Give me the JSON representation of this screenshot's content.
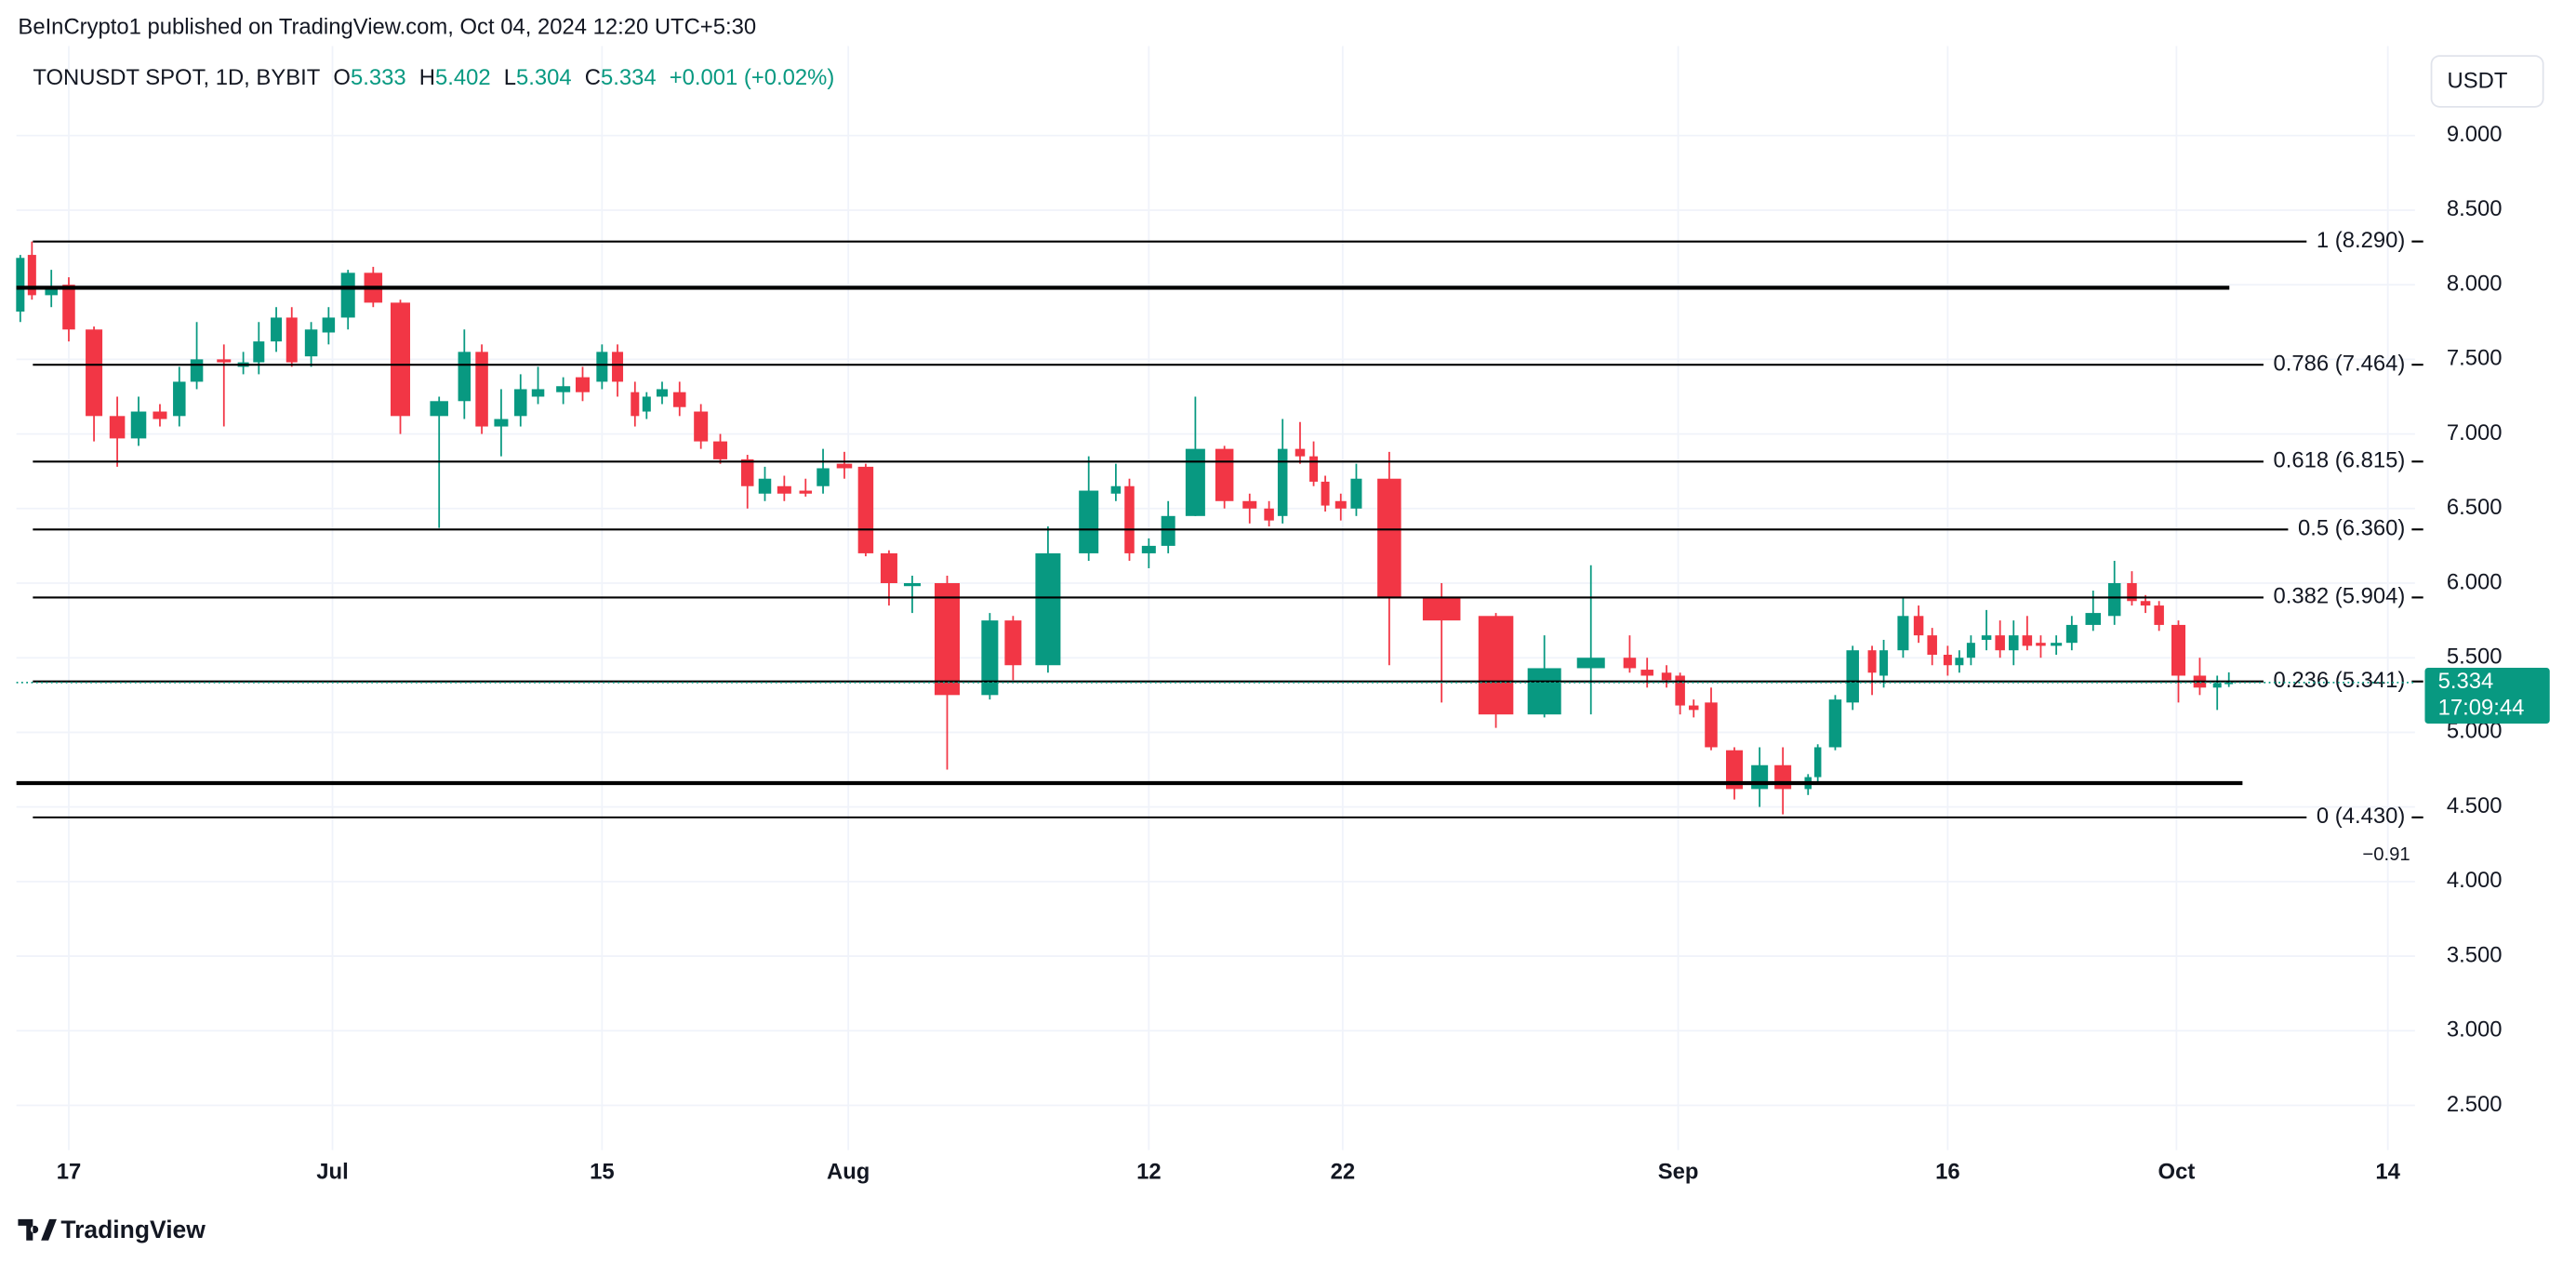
{
  "header": {
    "publisher": "BeInCrypto1 published on TradingView.com, Oct 04, 2024 12:20 UTC+5:30",
    "symbol": "TONUSDT SPOT, 1D, BYBIT",
    "ohlc": [
      {
        "label": "O",
        "value": "5.333"
      },
      {
        "label": "H",
        "value": "5.402"
      },
      {
        "label": "L",
        "value": "5.304"
      },
      {
        "label": "C",
        "value": "5.334"
      }
    ],
    "change": "+0.001 (+0.02%)",
    "currency_button": "USDT",
    "logo": "TradingView"
  },
  "chart_data": {
    "type": "candlestick",
    "up_color": "#089981",
    "down_color": "#f23645",
    "grid": true,
    "x": [
      -2.5,
      -1.9,
      -0.9,
      0,
      1.3,
      2.5,
      3.6,
      4.7,
      5.7,
      6.6,
      8.0,
      9.0,
      9.8,
      10.7,
      11.5,
      12.5,
      13.4,
      14.4,
      15.7,
      17.1,
      19.1,
      20.4,
      21.3,
      22.3,
      23.3,
      24.2,
      25.5,
      26.5,
      27.5,
      28.3,
      29.2,
      29.8,
      30.6,
      31.5,
      32.6,
      33.6,
      35.0,
      35.9,
      36.9,
      38.0,
      38.9,
      40.0,
      41.1,
      42.3,
      43.5,
      45.3,
      47.5,
      48.7,
      50.5,
      52.6,
      54.0,
      54.7,
      55.7,
      56.7,
      58.1,
      59.6,
      60.9,
      61.9,
      62.6,
      63.5,
      64.2,
      64.8,
      65.6,
      66.4,
      68.1,
      70.8,
      73.6,
      76.1,
      78.5,
      80.5,
      81.4,
      82.4,
      83.1,
      83.8,
      84.7,
      85.9,
      87.2,
      88.4,
      89.7,
      90.2,
      91.1,
      92.0,
      93.0,
      93.6,
      94.6,
      95.4,
      96.1,
      96.9,
      97.5,
      98.1,
      98.9,
      99.6,
      100.3,
      101.0,
      101.7,
      102.5,
      103.3,
      104.4,
      105.5,
      106.4,
      107.1,
      107.8,
      108.8,
      109.9,
      110.8,
      111.4
    ],
    "open": [
      7.82,
      8.2,
      7.93,
      8.0,
      7.7,
      7.12,
      6.97,
      7.15,
      7.12,
      7.35,
      7.5,
      7.45,
      7.48,
      7.62,
      7.78,
      7.52,
      7.68,
      7.78,
      8.08,
      7.88,
      7.12,
      7.22,
      7.55,
      7.05,
      7.12,
      7.25,
      7.28,
      7.38,
      7.35,
      7.55,
      7.28,
      7.15,
      7.25,
      7.28,
      7.15,
      6.95,
      6.83,
      6.6,
      6.65,
      6.62,
      6.65,
      6.8,
      6.78,
      6.2,
      5.98,
      6.0,
      5.25,
      5.75,
      5.45,
      6.2,
      6.6,
      6.65,
      6.2,
      6.25,
      6.45,
      6.9,
      6.55,
      6.5,
      6.45,
      6.9,
      6.85,
      6.68,
      6.55,
      6.5,
      6.7,
      5.9,
      5.78,
      5.12,
      5.43,
      5.5,
      5.42,
      5.4,
      5.38,
      5.18,
      5.2,
      4.88,
      4.62,
      4.78,
      4.62,
      4.7,
      4.9,
      5.2,
      5.55,
      5.38,
      5.55,
      5.78,
      5.65,
      5.52,
      5.45,
      5.5,
      5.62,
      5.65,
      5.55,
      5.65,
      5.6,
      5.58,
      5.6,
      5.72,
      5.78,
      6.0,
      5.88,
      5.85,
      5.72,
      5.38,
      5.3,
      5.333
    ],
    "high": [
      8.2,
      8.29,
      8.1,
      8.05,
      7.72,
      7.25,
      7.25,
      7.2,
      7.45,
      7.75,
      7.6,
      7.55,
      7.75,
      7.85,
      7.85,
      7.75,
      7.85,
      8.1,
      8.12,
      7.9,
      7.25,
      7.7,
      7.6,
      7.3,
      7.4,
      7.45,
      7.38,
      7.45,
      7.6,
      7.6,
      7.35,
      7.28,
      7.35,
      7.35,
      7.2,
      7.0,
      6.86,
      6.78,
      6.72,
      6.7,
      6.9,
      6.88,
      6.8,
      6.22,
      6.05,
      6.05,
      5.8,
      5.78,
      6.38,
      6.85,
      6.8,
      6.7,
      6.3,
      6.55,
      7.25,
      6.92,
      6.6,
      6.55,
      7.1,
      7.08,
      6.95,
      6.72,
      6.6,
      6.8,
      6.88,
      6.0,
      5.8,
      5.65,
      6.12,
      5.65,
      5.5,
      5.45,
      5.4,
      5.22,
      5.3,
      4.9,
      4.9,
      4.9,
      4.72,
      4.92,
      5.25,
      5.58,
      5.58,
      5.62,
      5.9,
      5.85,
      5.7,
      5.58,
      5.55,
      5.65,
      5.82,
      5.75,
      5.75,
      5.78,
      5.65,
      5.65,
      5.78,
      5.95,
      6.15,
      6.08,
      5.92,
      5.88,
      5.75,
      5.5,
      5.38,
      5.402
    ],
    "low": [
      7.75,
      7.9,
      7.85,
      7.62,
      6.95,
      6.78,
      6.92,
      7.05,
      7.05,
      7.3,
      7.05,
      7.4,
      7.4,
      7.55,
      7.45,
      7.45,
      7.6,
      7.7,
      7.85,
      7.0,
      6.37,
      7.1,
      7.0,
      6.85,
      7.05,
      7.2,
      7.2,
      7.22,
      7.3,
      7.25,
      7.05,
      7.1,
      7.2,
      7.12,
      6.9,
      6.8,
      6.5,
      6.55,
      6.55,
      6.58,
      6.6,
      6.7,
      6.18,
      5.85,
      5.8,
      4.75,
      5.22,
      5.35,
      5.4,
      6.15,
      6.55,
      6.15,
      6.1,
      6.2,
      6.45,
      6.5,
      6.4,
      6.38,
      6.4,
      6.8,
      6.65,
      6.48,
      6.42,
      6.45,
      5.45,
      5.2,
      5.03,
      5.1,
      5.12,
      5.4,
      5.3,
      5.3,
      5.12,
      5.1,
      4.88,
      4.55,
      4.5,
      4.45,
      4.58,
      4.65,
      4.88,
      5.15,
      5.25,
      5.3,
      5.5,
      5.6,
      5.45,
      5.38,
      5.4,
      5.45,
      5.55,
      5.5,
      5.45,
      5.55,
      5.5,
      5.52,
      5.55,
      5.68,
      5.72,
      5.85,
      5.8,
      5.68,
      5.2,
      5.25,
      5.15,
      5.304
    ],
    "close": [
      8.18,
      7.93,
      7.98,
      7.7,
      7.12,
      6.97,
      7.15,
      7.1,
      7.35,
      7.5,
      7.48,
      7.48,
      7.62,
      7.78,
      7.48,
      7.7,
      7.78,
      8.08,
      7.88,
      7.12,
      7.22,
      7.55,
      7.05,
      7.1,
      7.3,
      7.3,
      7.32,
      7.28,
      7.55,
      7.35,
      7.12,
      7.25,
      7.3,
      7.18,
      6.95,
      6.83,
      6.65,
      6.7,
      6.6,
      6.6,
      6.77,
      6.77,
      6.2,
      6.0,
      6.0,
      5.25,
      5.75,
      5.45,
      6.2,
      6.62,
      6.65,
      6.2,
      6.25,
      6.45,
      6.9,
      6.55,
      6.5,
      6.42,
      6.9,
      6.85,
      6.68,
      6.52,
      6.5,
      6.7,
      5.9,
      5.75,
      5.12,
      5.43,
      5.5,
      5.43,
      5.38,
      5.35,
      5.18,
      5.15,
      4.9,
      4.62,
      4.78,
      4.62,
      4.7,
      4.9,
      5.22,
      5.55,
      5.4,
      5.55,
      5.78,
      5.65,
      5.52,
      5.45,
      5.5,
      5.6,
      5.65,
      5.55,
      5.65,
      5.58,
      5.58,
      5.6,
      5.72,
      5.8,
      6.0,
      5.88,
      5.85,
      5.72,
      5.38,
      5.3,
      5.33,
      5.334
    ],
    "xlim": [
      -2.7,
      121.0
    ],
    "xticks": [
      {
        "value": 0,
        "label": "17"
      },
      {
        "value": 13.6,
        "label": "Jul"
      },
      {
        "value": 27.5,
        "label": "15"
      },
      {
        "value": 40.2,
        "label": "Aug"
      },
      {
        "value": 55.7,
        "label": "12"
      },
      {
        "value": 65.7,
        "label": "22"
      },
      {
        "value": 83.0,
        "label": "Sep"
      },
      {
        "value": 96.9,
        "label": "16"
      },
      {
        "value": 108.7,
        "label": "Oct"
      },
      {
        "value": 119.6,
        "label": "14"
      }
    ],
    "ylim": [
      2.2,
      9.6
    ],
    "yticks": [
      {
        "value": 2.5,
        "label": "2.500"
      },
      {
        "value": 3.0,
        "label": "3.000"
      },
      {
        "value": 3.5,
        "label": "3.500"
      },
      {
        "value": 4.0,
        "label": "4.000"
      },
      {
        "value": 4.5,
        "label": "4.500"
      },
      {
        "value": 5.0,
        "label": "5.000"
      },
      {
        "value": 5.5,
        "label": "5.500"
      },
      {
        "value": 6.0,
        "label": "6.000"
      },
      {
        "value": 6.5,
        "label": "6.500"
      },
      {
        "value": 7.0,
        "label": "7.000"
      },
      {
        "value": 7.5,
        "label": "7.500"
      },
      {
        "value": 8.0,
        "label": "8.000"
      },
      {
        "value": 8.5,
        "label": "8.500"
      },
      {
        "value": 9.0,
        "label": "9.000"
      }
    ],
    "fib_levels": [
      {
        "value": 8.29,
        "label": "1 (8.290)"
      },
      {
        "value": 7.464,
        "label": "0.786 (7.464)"
      },
      {
        "value": 6.815,
        "label": "0.618 (6.815)"
      },
      {
        "value": 6.36,
        "label": "0.5 (6.360)"
      },
      {
        "value": 5.904,
        "label": "0.382 (5.904)"
      },
      {
        "value": 5.341,
        "label": "0.236 (5.341)"
      },
      {
        "value": 4.43,
        "label": "0 (4.430)"
      }
    ],
    "support_resistance": [
      7.98,
      4.66
    ],
    "last_price": 5.334,
    "countdown": "17:09:44",
    "annotation": "−0.91"
  }
}
